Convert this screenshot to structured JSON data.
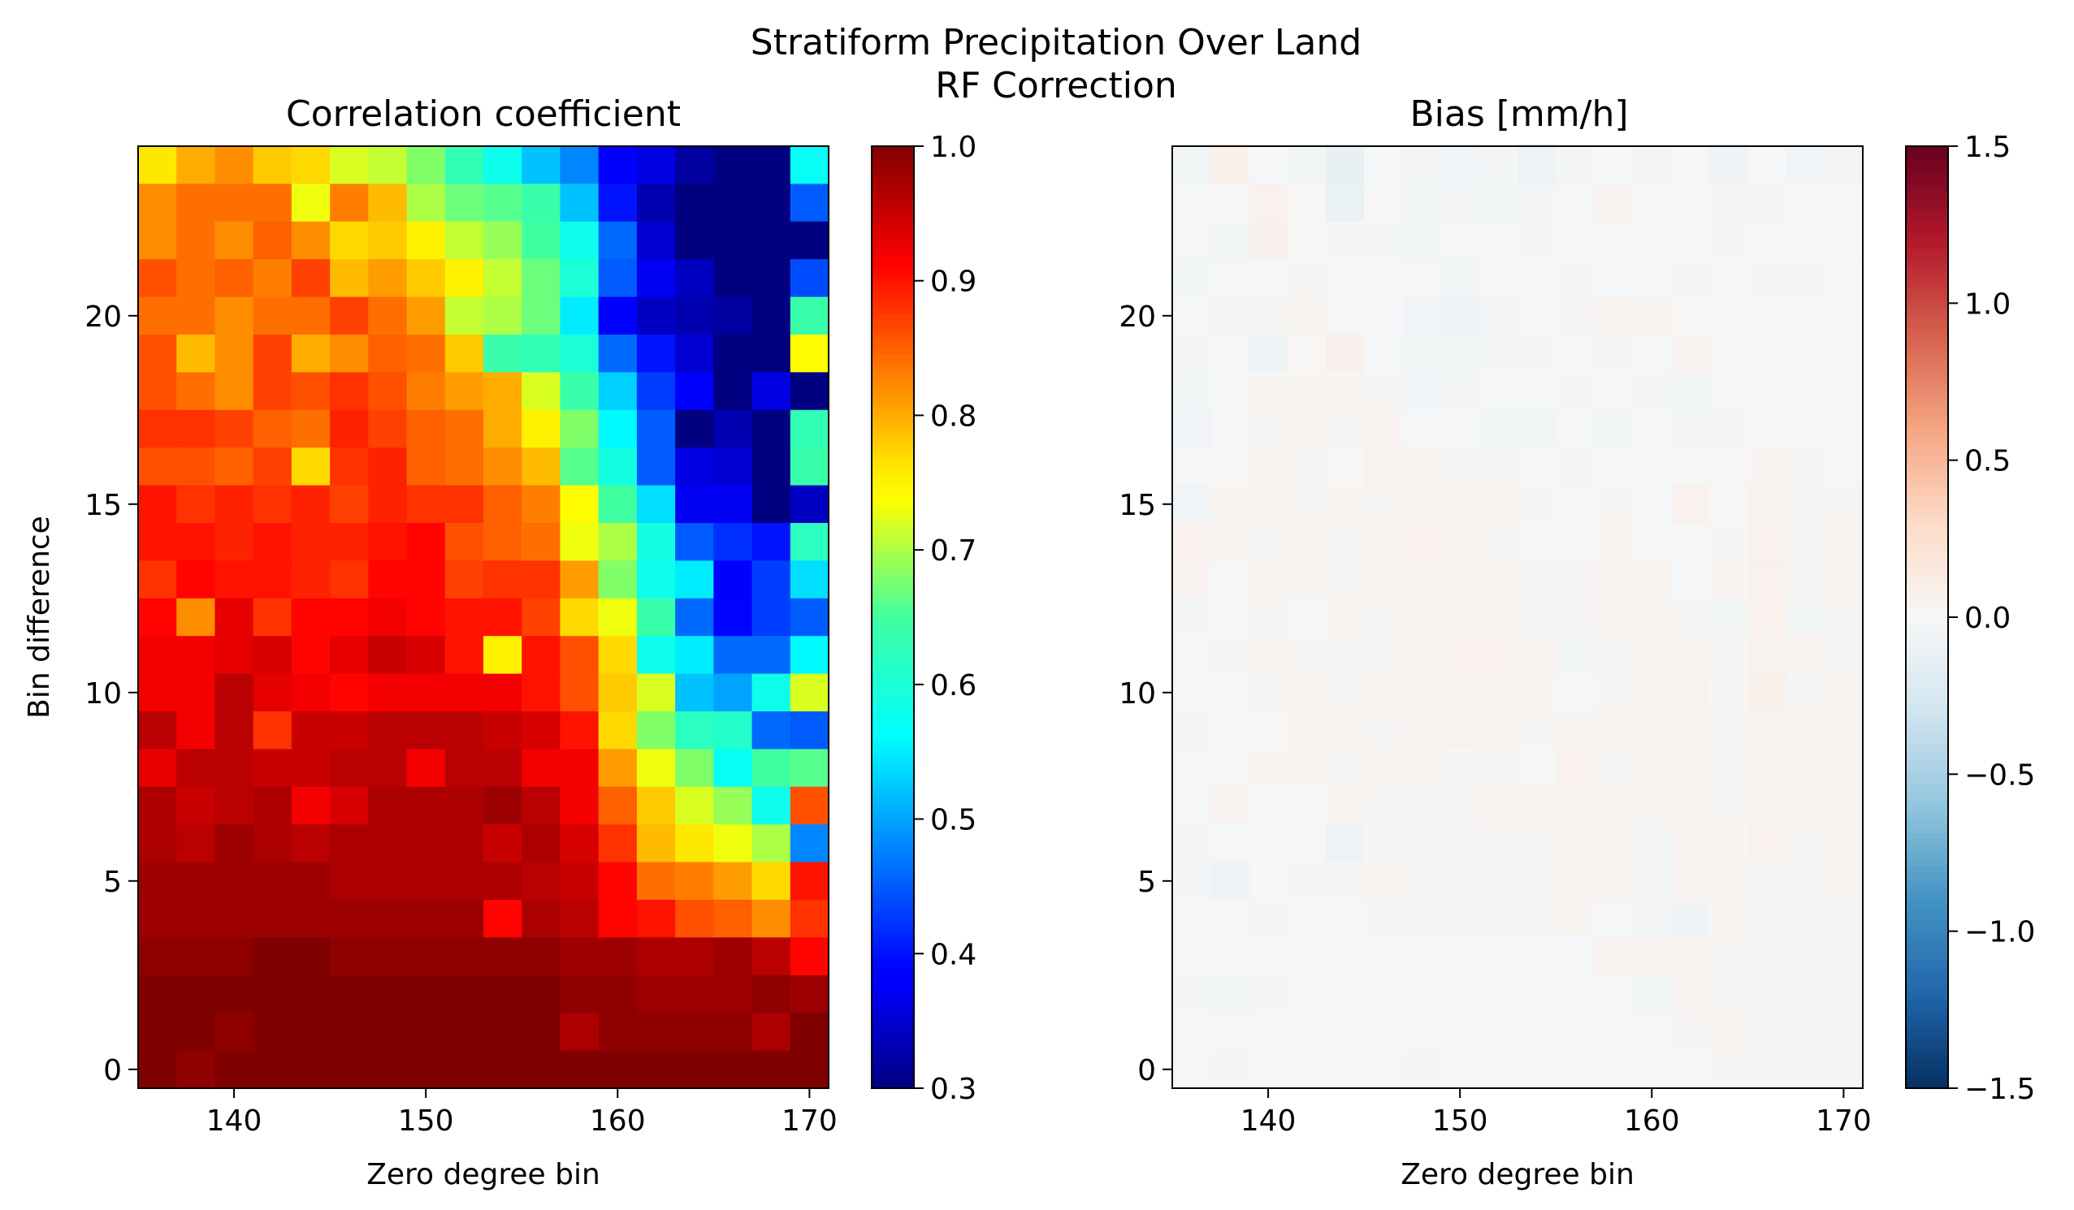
{
  "figure": {
    "suptitle_lines": [
      "Stratiform Precipitation Over Land",
      "RF Correction"
    ]
  },
  "chart_data": [
    {
      "type": "heatmap",
      "title": "Correlation coefficient",
      "xlabel": "Zero degree bin",
      "ylabel": "Bin difference",
      "colormap": "jet",
      "x_start": 136,
      "x_step": 2,
      "x_count": 18,
      "y_start": 0,
      "y_step": 1,
      "y_count": 25,
      "xlim": [
        135,
        171
      ],
      "ylim": [
        -0.5,
        24.5
      ],
      "xticks": [
        140,
        150,
        160,
        170
      ],
      "yticks": [
        0,
        5,
        10,
        15,
        20
      ],
      "colorbar": {
        "min": 0.3,
        "max": 1.0,
        "ticks": [
          "1.0",
          "0.9",
          "0.8",
          "0.7",
          "0.6",
          "0.5",
          "0.4",
          "0.3"
        ],
        "tick_values": [
          1.0,
          0.9,
          0.8,
          0.7,
          0.6,
          0.5,
          0.4,
          0.3
        ]
      },
      "rows_top_to_bottom": [
        [
          0.76,
          0.8,
          0.82,
          0.78,
          0.77,
          0.72,
          0.71,
          0.68,
          0.63,
          0.58,
          0.52,
          0.48,
          0.38,
          0.36,
          0.32,
          0.3,
          0.3,
          0.57
        ],
        [
          0.82,
          0.84,
          0.84,
          0.84,
          0.73,
          0.83,
          0.79,
          0.7,
          0.67,
          0.66,
          0.64,
          0.52,
          0.4,
          0.33,
          0.3,
          0.3,
          0.3,
          0.45
        ],
        [
          0.82,
          0.84,
          0.82,
          0.85,
          0.82,
          0.77,
          0.78,
          0.75,
          0.71,
          0.69,
          0.65,
          0.58,
          0.46,
          0.35,
          0.3,
          0.3,
          0.3,
          0.3
        ],
        [
          0.86,
          0.84,
          0.85,
          0.83,
          0.87,
          0.79,
          0.81,
          0.78,
          0.75,
          0.71,
          0.67,
          0.6,
          0.45,
          0.37,
          0.34,
          0.3,
          0.3,
          0.44
        ],
        [
          0.84,
          0.84,
          0.82,
          0.84,
          0.84,
          0.87,
          0.84,
          0.81,
          0.71,
          0.7,
          0.67,
          0.55,
          0.38,
          0.34,
          0.33,
          0.32,
          0.3,
          0.64
        ],
        [
          0.86,
          0.79,
          0.82,
          0.87,
          0.8,
          0.82,
          0.85,
          0.84,
          0.78,
          0.64,
          0.63,
          0.6,
          0.46,
          0.4,
          0.35,
          0.3,
          0.3,
          0.74
        ],
        [
          0.86,
          0.84,
          0.82,
          0.87,
          0.86,
          0.88,
          0.86,
          0.83,
          0.81,
          0.8,
          0.72,
          0.64,
          0.53,
          0.43,
          0.38,
          0.3,
          0.36,
          0.3
        ],
        [
          0.88,
          0.88,
          0.87,
          0.85,
          0.84,
          0.89,
          0.87,
          0.85,
          0.84,
          0.8,
          0.75,
          0.68,
          0.56,
          0.45,
          0.3,
          0.33,
          0.3,
          0.63
        ],
        [
          0.86,
          0.86,
          0.85,
          0.87,
          0.77,
          0.88,
          0.89,
          0.85,
          0.84,
          0.82,
          0.79,
          0.66,
          0.59,
          0.45,
          0.36,
          0.35,
          0.3,
          0.64
        ],
        [
          0.9,
          0.88,
          0.89,
          0.88,
          0.89,
          0.87,
          0.89,
          0.88,
          0.88,
          0.85,
          0.83,
          0.74,
          0.65,
          0.54,
          0.37,
          0.37,
          0.3,
          0.34
        ],
        [
          0.9,
          0.9,
          0.89,
          0.9,
          0.89,
          0.89,
          0.9,
          0.91,
          0.86,
          0.85,
          0.84,
          0.73,
          0.7,
          0.59,
          0.45,
          0.42,
          0.4,
          0.62
        ],
        [
          0.88,
          0.91,
          0.9,
          0.9,
          0.89,
          0.88,
          0.91,
          0.91,
          0.87,
          0.88,
          0.88,
          0.81,
          0.68,
          0.58,
          0.55,
          0.38,
          0.43,
          0.54
        ],
        [
          0.91,
          0.82,
          0.93,
          0.88,
          0.91,
          0.91,
          0.92,
          0.91,
          0.9,
          0.9,
          0.87,
          0.77,
          0.73,
          0.64,
          0.46,
          0.39,
          0.43,
          0.45
        ],
        [
          0.92,
          0.92,
          0.93,
          0.94,
          0.91,
          0.93,
          0.95,
          0.94,
          0.9,
          0.75,
          0.9,
          0.86,
          0.77,
          0.58,
          0.55,
          0.46,
          0.46,
          0.56
        ],
        [
          0.92,
          0.92,
          0.96,
          0.93,
          0.92,
          0.91,
          0.92,
          0.92,
          0.92,
          0.92,
          0.9,
          0.86,
          0.78,
          0.72,
          0.52,
          0.5,
          0.58,
          0.72
        ],
        [
          0.96,
          0.92,
          0.96,
          0.88,
          0.95,
          0.95,
          0.96,
          0.96,
          0.96,
          0.95,
          0.94,
          0.9,
          0.77,
          0.68,
          0.62,
          0.61,
          0.46,
          0.45
        ],
        [
          0.93,
          0.96,
          0.96,
          0.95,
          0.95,
          0.96,
          0.96,
          0.92,
          0.96,
          0.96,
          0.92,
          0.92,
          0.81,
          0.73,
          0.68,
          0.57,
          0.65,
          0.66
        ],
        [
          0.97,
          0.95,
          0.96,
          0.97,
          0.92,
          0.94,
          0.97,
          0.97,
          0.97,
          0.98,
          0.96,
          0.92,
          0.85,
          0.78,
          0.72,
          0.69,
          0.58,
          0.86
        ],
        [
          0.97,
          0.96,
          0.98,
          0.97,
          0.96,
          0.97,
          0.97,
          0.97,
          0.97,
          0.95,
          0.97,
          0.94,
          0.88,
          0.79,
          0.76,
          0.73,
          0.7,
          0.48
        ],
        [
          0.98,
          0.98,
          0.98,
          0.98,
          0.98,
          0.97,
          0.97,
          0.97,
          0.97,
          0.97,
          0.96,
          0.95,
          0.91,
          0.84,
          0.83,
          0.81,
          0.77,
          0.9
        ],
        [
          0.98,
          0.98,
          0.98,
          0.98,
          0.98,
          0.98,
          0.98,
          0.98,
          0.98,
          0.91,
          0.97,
          0.96,
          0.91,
          0.9,
          0.86,
          0.85,
          0.82,
          0.88
        ],
        [
          0.99,
          0.99,
          0.99,
          1.0,
          1.0,
          0.99,
          0.99,
          0.99,
          0.99,
          0.99,
          0.99,
          0.98,
          0.98,
          0.97,
          0.97,
          0.98,
          0.96,
          0.91
        ],
        [
          1.0,
          1.0,
          1.0,
          1.0,
          1.0,
          1.0,
          1.0,
          1.0,
          1.0,
          1.0,
          1.0,
          0.99,
          0.99,
          0.98,
          0.98,
          0.98,
          0.99,
          0.98
        ],
        [
          1.0,
          1.0,
          0.99,
          1.0,
          1.0,
          1.0,
          1.0,
          1.0,
          1.0,
          1.0,
          1.0,
          0.97,
          0.99,
          0.99,
          0.99,
          0.99,
          0.97,
          1.0
        ],
        [
          1.0,
          0.99,
          1.0,
          1.0,
          1.0,
          1.0,
          1.0,
          1.0,
          1.0,
          1.0,
          1.0,
          1.0,
          1.0,
          1.0,
          1.0,
          1.0,
          1.0,
          1.0
        ]
      ]
    },
    {
      "type": "heatmap",
      "title": "Bias [mm/h]",
      "xlabel": "Zero degree bin",
      "ylabel": "",
      "colormap": "RdBu_r",
      "x_start": 136,
      "x_step": 2,
      "x_count": 18,
      "y_start": 0,
      "y_step": 1,
      "y_count": 25,
      "xlim": [
        135,
        171
      ],
      "ylim": [
        -0.5,
        24.5
      ],
      "xticks": [
        140,
        150,
        160,
        170
      ],
      "yticks": [
        0,
        5,
        10,
        15,
        20
      ],
      "colorbar": {
        "min": -1.5,
        "max": 1.5,
        "ticks": [
          "1.5",
          "1.0",
          "0.5",
          "0.0",
          "−0.5",
          "−1.0",
          "−1.5"
        ],
        "tick_values": [
          1.5,
          1.0,
          0.5,
          0.0,
          -0.5,
          -1.0,
          -1.5
        ]
      },
      "rows_top_to_bottom": [
        [
          -0.04,
          0.08,
          -0.02,
          -0.04,
          -0.12,
          -0.02,
          -0.03,
          -0.05,
          -0.03,
          -0.08,
          -0.03,
          -0.02,
          -0.03,
          -0.02,
          -0.06,
          -0.02,
          -0.05,
          -0.03
        ],
        [
          -0.02,
          -0.01,
          0.06,
          0.01,
          -0.1,
          -0.01,
          -0.04,
          -0.03,
          -0.04,
          -0.03,
          -0.02,
          0.04,
          -0.02,
          -0.01,
          0.02,
          0.02,
          -0.01,
          0.01
        ],
        [
          -0.02,
          -0.04,
          0.07,
          -0.01,
          0.02,
          -0.03,
          -0.04,
          -0.02,
          -0.02,
          -0.03,
          -0.01,
          -0.02,
          -0.01,
          -0.02,
          -0.03,
          -0.02,
          -0.02,
          0.01
        ],
        [
          -0.04,
          -0.02,
          -0.01,
          0.02,
          -0.02,
          -0.01,
          -0.01,
          -0.04,
          -0.01,
          -0.02,
          -0.03,
          -0.02,
          -0.01,
          -0.03,
          -0.02,
          -0.03,
          -0.03,
          -0.02
        ],
        [
          -0.02,
          0.02,
          0.02,
          0.03,
          -0.02,
          -0.02,
          -0.05,
          -0.06,
          -0.03,
          -0.02,
          0.02,
          0.03,
          0.03,
          0.01,
          -0.02,
          -0.01,
          -0.02,
          -0.01
        ],
        [
          -0.03,
          -0.02,
          -0.07,
          0.01,
          0.07,
          -0.02,
          -0.04,
          -0.04,
          -0.03,
          -0.03,
          -0.02,
          -0.03,
          -0.02,
          0.04,
          -0.01,
          -0.02,
          -0.02,
          -0.01
        ],
        [
          -0.04,
          -0.02,
          0.03,
          0.03,
          0.03,
          0.02,
          -0.05,
          -0.03,
          -0.02,
          -0.02,
          0.02,
          -0.01,
          -0.03,
          -0.04,
          -0.02,
          -0.01,
          -0.02,
          0.01
        ],
        [
          -0.05,
          -0.01,
          0.02,
          0.04,
          0.02,
          0.04,
          -0.02,
          -0.02,
          -0.04,
          -0.04,
          -0.02,
          -0.04,
          -0.02,
          -0.03,
          -0.03,
          -0.02,
          -0.02,
          -0.01
        ],
        [
          -0.02,
          0.01,
          0.03,
          0.02,
          0.01,
          0.05,
          0.03,
          0.02,
          0.02,
          -0.02,
          0.02,
          -0.01,
          -0.02,
          -0.01,
          -0.02,
          0.03,
          0.02,
          0.01
        ],
        [
          -0.05,
          0.03,
          0.03,
          0.02,
          0.03,
          0.02,
          0.05,
          0.04,
          0.03,
          0.02,
          -0.02,
          0.02,
          -0.02,
          0.06,
          -0.01,
          0.04,
          0.02,
          0.02
        ],
        [
          0.06,
          0.03,
          0.02,
          0.03,
          0.02,
          0.04,
          0.06,
          0.05,
          0.02,
          -0.02,
          -0.01,
          0.03,
          -0.01,
          -0.01,
          0.02,
          0.06,
          0.02,
          0.05
        ],
        [
          0.04,
          -0.02,
          0.04,
          0.03,
          0.02,
          0.03,
          0.04,
          0.04,
          0.03,
          -0.03,
          0.02,
          0.03,
          0.05,
          -0.02,
          0.03,
          0.06,
          0.02,
          0.04
        ],
        [
          -0.03,
          -0.02,
          0.02,
          -0.02,
          0.03,
          0.02,
          0.04,
          0.05,
          0.04,
          -0.03,
          0.02,
          0.03,
          0.03,
          0.02,
          -0.04,
          0.06,
          -0.04,
          0.02
        ],
        [
          -0.02,
          -0.03,
          0.03,
          0.02,
          0.02,
          0.02,
          0.04,
          0.06,
          0.06,
          0.03,
          -0.04,
          0.02,
          0.04,
          0.03,
          0.02,
          0.05,
          0.03,
          0.02
        ],
        [
          -0.02,
          -0.01,
          0.02,
          0.03,
          0.02,
          0.04,
          0.03,
          0.04,
          0.04,
          0.03,
          -0.02,
          0.02,
          0.04,
          0.05,
          0.02,
          0.08,
          0.02,
          0.03
        ],
        [
          -0.03,
          -0.02,
          -0.01,
          0.05,
          0.03,
          0.02,
          0.03,
          0.05,
          0.03,
          0.02,
          0.03,
          0.03,
          0.03,
          0.03,
          0.02,
          0.03,
          0.03,
          0.04
        ],
        [
          -0.02,
          -0.02,
          0.03,
          0.03,
          0.02,
          0.03,
          0.03,
          0.02,
          0.02,
          -0.02,
          0.06,
          0.02,
          0.03,
          0.04,
          0.02,
          0.03,
          0.03,
          0.03
        ],
        [
          -0.02,
          0.04,
          -0.02,
          -0.02,
          0.03,
          0.02,
          0.02,
          0.02,
          0.03,
          0.04,
          0.03,
          0.05,
          0.03,
          0.03,
          0.02,
          0.04,
          0.03,
          0.03
        ],
        [
          -0.03,
          -0.02,
          -0.02,
          -0.01,
          -0.06,
          0.02,
          0.02,
          0.02,
          0.02,
          0.02,
          0.04,
          0.04,
          -0.03,
          0.04,
          0.03,
          0.06,
          0.02,
          0.03
        ],
        [
          -0.03,
          -0.06,
          -0.02,
          0.02,
          0.02,
          0.03,
          0.02,
          0.02,
          0.02,
          0.02,
          0.04,
          0.04,
          -0.03,
          0.04,
          0.03,
          0.02,
          0.02,
          0.03
        ],
        [
          -0.02,
          -0.02,
          -0.03,
          -0.02,
          -0.02,
          0.02,
          0.02,
          0.02,
          0.02,
          0.02,
          0.03,
          -0.02,
          -0.03,
          -0.06,
          0.03,
          0.02,
          0.02,
          0.02
        ],
        [
          -0.02,
          -0.02,
          -0.02,
          -0.02,
          -0.02,
          -0.02,
          -0.02,
          -0.02,
          -0.02,
          -0.02,
          -0.02,
          0.04,
          0.04,
          0.03,
          0.02,
          0.02,
          0.02,
          0.02
        ],
        [
          -0.03,
          -0.04,
          -0.03,
          -0.02,
          -0.02,
          -0.02,
          -0.02,
          -0.02,
          -0.02,
          -0.02,
          -0.02,
          -0.02,
          -0.04,
          0.03,
          0.02,
          0.02,
          0.02,
          0.02
        ],
        [
          -0.02,
          -0.02,
          -0.02,
          -0.02,
          -0.02,
          -0.02,
          -0.02,
          -0.02,
          -0.02,
          -0.02,
          -0.02,
          -0.02,
          -0.02,
          0.02,
          0.03,
          0.02,
          0.02,
          0.02
        ],
        [
          -0.02,
          -0.03,
          -0.02,
          -0.02,
          -0.02,
          -0.02,
          -0.03,
          -0.02,
          -0.02,
          -0.02,
          -0.02,
          -0.02,
          -0.02,
          -0.02,
          0.02,
          0.02,
          0.02,
          0.02
        ]
      ]
    }
  ]
}
